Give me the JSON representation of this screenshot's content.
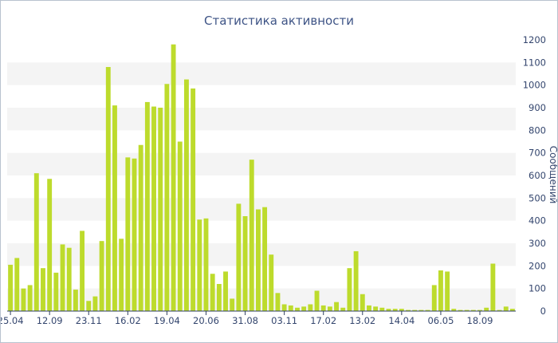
{
  "chart_data": {
    "type": "bar",
    "title": "Статистика активности",
    "ylabel": "Сообщений",
    "ylim": [
      0,
      1200
    ],
    "yticks": [
      0,
      100,
      200,
      300,
      400,
      500,
      600,
      700,
      800,
      900,
      1000,
      1100,
      1200
    ],
    "grid": "alternating-bands",
    "colors": {
      "bar": "#bddb2c",
      "text": "#34466e",
      "title": "#3e5486",
      "band": "#f4f4f4"
    },
    "x_tick_labels": [
      {
        "label": "25.04",
        "index": 0
      },
      {
        "label": "12.09",
        "index": 6
      },
      {
        "label": "23.11",
        "index": 12
      },
      {
        "label": "16.02",
        "index": 18
      },
      {
        "label": "19.04",
        "index": 24
      },
      {
        "label": "20.06",
        "index": 30
      },
      {
        "label": "31.08",
        "index": 36
      },
      {
        "label": "03.11",
        "index": 42
      },
      {
        "label": "17.02",
        "index": 48
      },
      {
        "label": "13.02",
        "index": 54
      },
      {
        "label": "14.04",
        "index": 60
      },
      {
        "label": "06.05",
        "index": 66
      },
      {
        "label": "18.09",
        "index": 72
      }
    ],
    "values": [
      205,
      235,
      100,
      115,
      610,
      190,
      585,
      170,
      295,
      280,
      95,
      355,
      45,
      65,
      310,
      1080,
      910,
      320,
      680,
      675,
      735,
      925,
      905,
      900,
      1005,
      1180,
      750,
      1025,
      985,
      405,
      410,
      165,
      120,
      175,
      55,
      475,
      420,
      670,
      450,
      460,
      250,
      80,
      30,
      25,
      15,
      20,
      30,
      90,
      25,
      20,
      40,
      15,
      190,
      265,
      75,
      25,
      20,
      15,
      10,
      10,
      10,
      5,
      5,
      5,
      5,
      115,
      180,
      175,
      10,
      5,
      5,
      5,
      5,
      15,
      210,
      5,
      20,
      10
    ]
  }
}
